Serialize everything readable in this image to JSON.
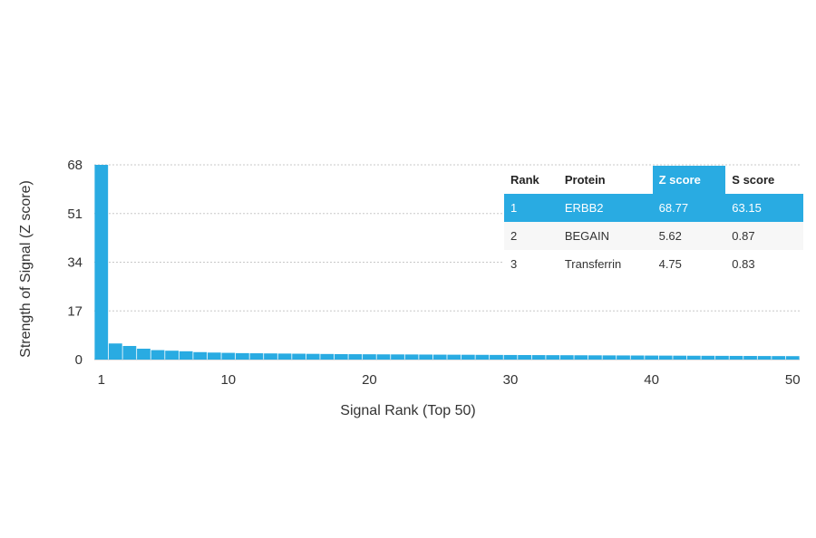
{
  "chart_data": {
    "type": "bar",
    "title": "",
    "xlabel": "Signal Rank (Top 50)",
    "ylabel": "Strength of Signal (Z score)",
    "ylim": [
      0,
      68
    ],
    "yticks": [
      0,
      17,
      34,
      51,
      68
    ],
    "xticks": [
      1,
      10,
      20,
      30,
      40,
      50
    ],
    "grid": "horizontal dotted",
    "bar_color": "#29abe2",
    "x": [
      1,
      2,
      3,
      4,
      5,
      6,
      7,
      8,
      9,
      10,
      11,
      12,
      13,
      14,
      15,
      16,
      17,
      18,
      19,
      20,
      21,
      22,
      23,
      24,
      25,
      26,
      27,
      28,
      29,
      30,
      31,
      32,
      33,
      34,
      35,
      36,
      37,
      38,
      39,
      40,
      41,
      42,
      43,
      44,
      45,
      46,
      47,
      48,
      49,
      50
    ],
    "values": [
      68.77,
      5.62,
      4.75,
      3.8,
      3.3,
      3.1,
      2.9,
      2.6,
      2.45,
      2.35,
      2.25,
      2.2,
      2.15,
      2.1,
      2.05,
      2.0,
      1.95,
      1.9,
      1.88,
      1.85,
      1.82,
      1.8,
      1.78,
      1.75,
      1.72,
      1.7,
      1.68,
      1.65,
      1.62,
      1.6,
      1.58,
      1.56,
      1.54,
      1.52,
      1.5,
      1.48,
      1.46,
      1.44,
      1.42,
      1.4,
      1.38,
      1.36,
      1.34,
      1.32,
      1.3,
      1.28,
      1.26,
      1.24,
      1.22,
      1.2
    ]
  },
  "table": {
    "headers": [
      "Rank",
      "Protein",
      "Z score",
      "S score"
    ],
    "rows": [
      {
        "rank": "1",
        "protein": "ERBB2",
        "z": "68.77",
        "s": "63.15"
      },
      {
        "rank": "2",
        "protein": "BEGAIN",
        "z": "5.62",
        "s": "0.87"
      },
      {
        "rank": "3",
        "protein": "Transferrin",
        "z": "4.75",
        "s": "0.83"
      }
    ]
  }
}
